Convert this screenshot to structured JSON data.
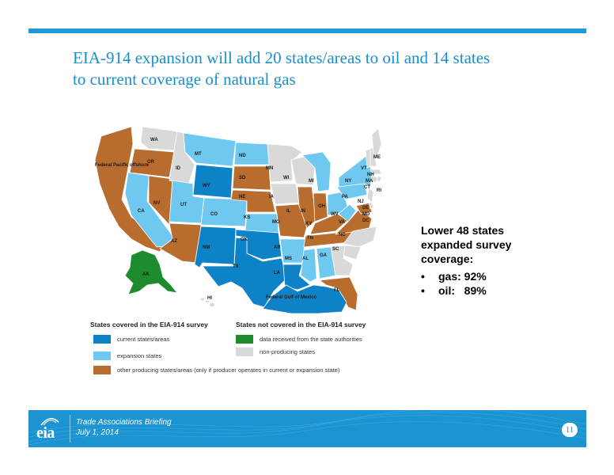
{
  "slide": {
    "title_line1": "EIA-914 expansion will add 20 states/areas to oil and 14 states",
    "title_line2": "to current coverage of natural gas",
    "page_number": "11"
  },
  "colors": {
    "current": "#0e82c6",
    "expansion": "#6ec8ef",
    "other_producing": "#b86c2e",
    "state_authorities": "#1e8b2e",
    "non_producing": "#d9d9d9",
    "accent": "#1e9ad6"
  },
  "map": {
    "states": [
      {
        "abbr": "WA",
        "category": "non_producing"
      },
      {
        "abbr": "OR",
        "category": "other_producing"
      },
      {
        "abbr": "CA",
        "category": "expansion"
      },
      {
        "abbr": "NV",
        "category": "other_producing"
      },
      {
        "abbr": "ID",
        "category": "non_producing"
      },
      {
        "abbr": "MT",
        "category": "expansion"
      },
      {
        "abbr": "WY",
        "category": "current"
      },
      {
        "abbr": "UT",
        "category": "expansion"
      },
      {
        "abbr": "AZ",
        "category": "other_producing"
      },
      {
        "abbr": "CO",
        "category": "expansion"
      },
      {
        "abbr": "NM",
        "category": "current"
      },
      {
        "abbr": "ND",
        "category": "expansion"
      },
      {
        "abbr": "SD",
        "category": "other_producing"
      },
      {
        "abbr": "NE",
        "category": "other_producing"
      },
      {
        "abbr": "KS",
        "category": "expansion"
      },
      {
        "abbr": "OK",
        "category": "current"
      },
      {
        "abbr": "TX",
        "category": "current"
      },
      {
        "abbr": "MN",
        "category": "non_producing"
      },
      {
        "abbr": "IA",
        "category": "non_producing"
      },
      {
        "abbr": "MO",
        "category": "other_producing"
      },
      {
        "abbr": "AR",
        "category": "expansion"
      },
      {
        "abbr": "LA",
        "category": "current"
      },
      {
        "abbr": "WI",
        "category": "non_producing"
      },
      {
        "abbr": "IL",
        "category": "other_producing"
      },
      {
        "abbr": "MS",
        "category": "expansion"
      },
      {
        "abbr": "MI",
        "category": "expansion"
      },
      {
        "abbr": "IN",
        "category": "other_producing"
      },
      {
        "abbr": "KY",
        "category": "other_producing"
      },
      {
        "abbr": "TN",
        "category": "other_producing"
      },
      {
        "abbr": "AL",
        "category": "expansion"
      },
      {
        "abbr": "OH",
        "category": "expansion"
      },
      {
        "abbr": "WV",
        "category": "expansion"
      },
      {
        "abbr": "PA",
        "category": "expansion"
      },
      {
        "abbr": "NY",
        "category": "expansion"
      },
      {
        "abbr": "VA",
        "category": "other_producing"
      },
      {
        "abbr": "NC",
        "category": "non_producing"
      },
      {
        "abbr": "SC",
        "category": "non_producing"
      },
      {
        "abbr": "GA",
        "category": "non_producing"
      },
      {
        "abbr": "FL",
        "category": "other_producing"
      },
      {
        "abbr": "VT",
        "category": "non_producing"
      },
      {
        "abbr": "NH",
        "category": "non_producing"
      },
      {
        "abbr": "MA",
        "category": "non_producing"
      },
      {
        "abbr": "CT",
        "category": "non_producing"
      },
      {
        "abbr": "RI",
        "category": "non_producing"
      },
      {
        "abbr": "NJ",
        "category": "non_producing"
      },
      {
        "abbr": "DE",
        "category": "non_producing"
      },
      {
        "abbr": "MD",
        "category": "other_producing"
      },
      {
        "abbr": "DC",
        "category": "non_producing"
      },
      {
        "abbr": "ME",
        "category": "non_producing"
      },
      {
        "abbr": "AK",
        "category": "state_authorities"
      },
      {
        "abbr": "HI",
        "category": "non_producing"
      }
    ],
    "offshore_areas": [
      {
        "label": "Federal Pacific offshore",
        "category": "other_producing"
      },
      {
        "label": "Federal Gulf of Mexico",
        "category": "current"
      }
    ]
  },
  "legend": {
    "covered_heading": "States covered in the EIA-914 survey",
    "not_covered_heading": "States not covered in the EIA-914 survey",
    "items": [
      {
        "label": "current states/areas",
        "category": "current"
      },
      {
        "label": "expansion states",
        "category": "expansion"
      },
      {
        "label": "other producing states/areas (only if producer operates in current or expansion state)",
        "category": "other_producing"
      },
      {
        "label": "data received from the state authorities",
        "category": "state_authorities"
      },
      {
        "label": "non-producing states",
        "category": "non_producing"
      }
    ]
  },
  "coverage": {
    "heading_line1": "Lower 48 states",
    "heading_line2": "expanded survey",
    "heading_line3": "coverage:",
    "bullet": "•",
    "items": [
      {
        "text": "gas: 92%"
      },
      {
        "text": "oil:   89%"
      }
    ]
  },
  "footer": {
    "logo_text": "eia",
    "line1": "Trade Associations Briefing",
    "line2": "July 1, 2014"
  }
}
